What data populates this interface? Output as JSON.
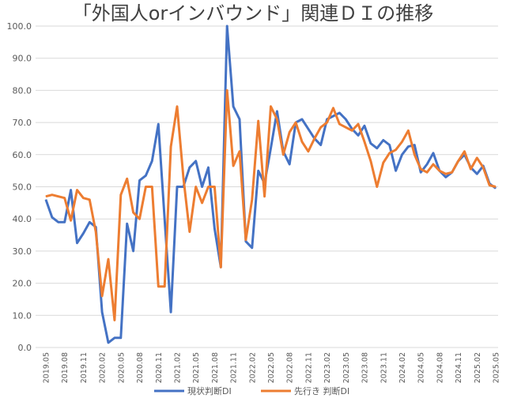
{
  "chart_data": {
    "type": "line",
    "title": "「外国人orインバウンド」関連ＤＩの推移",
    "xlabel": "",
    "ylabel": "",
    "ylim": [
      0,
      100
    ],
    "yticks": [
      "0.0",
      "10.0",
      "20.0",
      "30.0",
      "40.0",
      "50.0",
      "60.0",
      "70.0",
      "80.0",
      "90.0",
      "100.0"
    ],
    "grid": true,
    "legend_position": "bottom",
    "x_start": "2019.05",
    "x_end": "2025.05",
    "x_tick_labels": [
      "2019.05",
      "2019.08",
      "2019.11",
      "2020.02",
      "2020.05",
      "2020.08",
      "2020.11",
      "2021.02",
      "2021.05",
      "2021.08",
      "2021.11",
      "2022.02",
      "2022.05",
      "2022.08",
      "2022.11",
      "2023.02",
      "2023.05",
      "2023.08",
      "2023.11",
      "2024.02",
      "2024.05",
      "2024.08",
      "2024.11",
      "2025.02",
      "2025.05"
    ],
    "series": [
      {
        "name": "現状判断DI",
        "color": "#4472C4",
        "values": [
          46,
          40.5,
          39,
          39,
          49,
          32.5,
          35.5,
          39,
          37.5,
          11,
          1.5,
          3,
          3,
          38.5,
          30,
          52,
          53.5,
          58,
          69.5,
          40,
          11,
          50,
          50,
          56,
          58,
          50,
          56,
          37,
          25,
          100,
          75,
          71,
          33,
          31,
          55,
          51,
          62,
          73.5,
          61,
          57,
          70,
          71,
          68,
          65,
          63,
          71,
          72,
          73,
          71,
          68,
          66,
          69,
          63.5,
          62,
          64.5,
          63,
          55,
          60,
          62.5,
          63,
          54.5,
          57,
          60.5,
          55,
          53,
          54.5,
          58,
          60,
          56,
          54,
          56.5,
          51,
          49.5
        ]
      },
      {
        "name": "先行き 判断DI",
        "color": "#ED7D31",
        "values": [
          47,
          47.5,
          47,
          46.5,
          39.5,
          49,
          46.5,
          46,
          36,
          16,
          27.5,
          8.5,
          47.5,
          52.5,
          42,
          40,
          50,
          50,
          19,
          19,
          62.5,
          75,
          53,
          36,
          50,
          45,
          50,
          50,
          25,
          80,
          56.5,
          61,
          33.5,
          46,
          70.5,
          47,
          75,
          71,
          60,
          67,
          70,
          64,
          61,
          65,
          68.5,
          70,
          74.5,
          69.5,
          68.5,
          67.5,
          69.5,
          64,
          58,
          50,
          57.5,
          60.5,
          61.5,
          64,
          67.5,
          60,
          55.5,
          54.5,
          57,
          55,
          54,
          54.5,
          58,
          61,
          55.5,
          59,
          56,
          50.5,
          50
        ]
      }
    ]
  }
}
